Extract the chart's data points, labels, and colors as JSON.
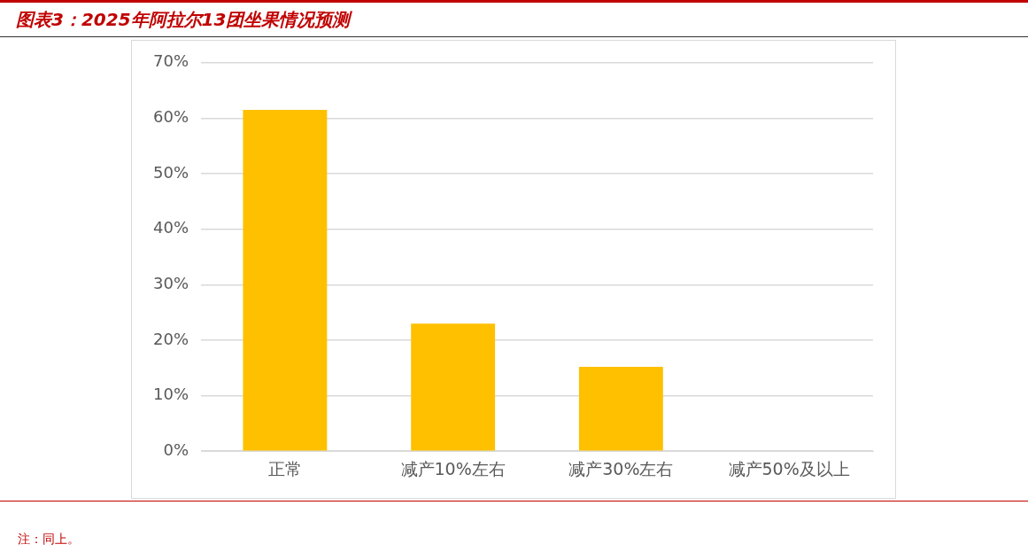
{
  "chart_data": {
    "type": "bar",
    "title": "图表3：2025年阿拉尔13团坐果情况预测",
    "categories": [
      "正常",
      "减产10%左右",
      "减产30%左右",
      "减产50%及以上"
    ],
    "values": [
      61.5,
      23,
      15.2,
      0
    ],
    "color": "#ffc000",
    "ylim": [
      0,
      70
    ],
    "yticks": [
      {
        "value": 0,
        "label": "0%"
      },
      {
        "value": 10,
        "label": "10%"
      },
      {
        "value": 20,
        "label": "20%"
      },
      {
        "value": 30,
        "label": "30%"
      },
      {
        "value": 40,
        "label": "40%"
      },
      {
        "value": 50,
        "label": "50%"
      },
      {
        "value": 60,
        "label": "60%"
      },
      {
        "value": 70,
        "label": "70%"
      }
    ],
    "grid": "y",
    "legend": false,
    "annotations": [
      "注：同上。"
    ]
  }
}
